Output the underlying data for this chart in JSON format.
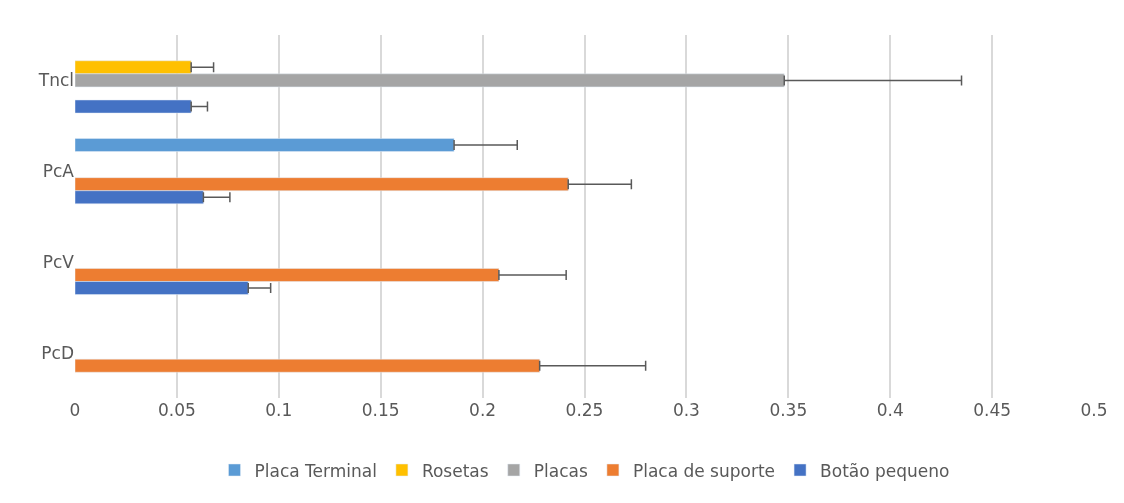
{
  "chart_data": {
    "type": "bar",
    "orientation": "horizontal",
    "categories": [
      "Tncl",
      "PcA",
      "PcV",
      "PcD"
    ],
    "series": [
      {
        "name": "Placa Terminal",
        "color": "#5b9bd5",
        "values": [
          null,
          0.186,
          null,
          null
        ],
        "errors": [
          null,
          [
            0.186,
            0.217
          ],
          null,
          null
        ]
      },
      {
        "name": "Rosetas",
        "color": "#ffc000",
        "values": [
          0.057,
          null,
          null,
          null
        ],
        "errors": [
          [
            0.057,
            0.068
          ],
          null,
          null,
          null
        ]
      },
      {
        "name": "Placas",
        "color": "#a5a5a5",
        "values": [
          0.348,
          null,
          null,
          null
        ],
        "errors": [
          [
            0.348,
            0.435
          ],
          null,
          null,
          null
        ]
      },
      {
        "name": "Placa de suporte",
        "color": "#ed7d31",
        "values": [
          null,
          0.242,
          0.208,
          0.228
        ],
        "errors": [
          null,
          [
            0.242,
            0.273
          ],
          [
            0.208,
            0.241
          ],
          [
            0.228,
            0.28
          ]
        ]
      },
      {
        "name": "Botão pequeno",
        "color": "#4472c4",
        "values": [
          0.057,
          0.063,
          0.085,
          null
        ],
        "errors": [
          [
            0.057,
            0.065
          ],
          [
            0.063,
            0.076
          ],
          [
            0.085,
            0.096
          ],
          null
        ]
      }
    ],
    "xlim": [
      0,
      0.5
    ],
    "xticks": [
      0,
      0.05,
      0.1,
      0.15,
      0.2,
      0.25,
      0.3,
      0.35,
      0.4,
      0.45,
      0.5
    ],
    "grid": "x",
    "legend": "bottom"
  }
}
